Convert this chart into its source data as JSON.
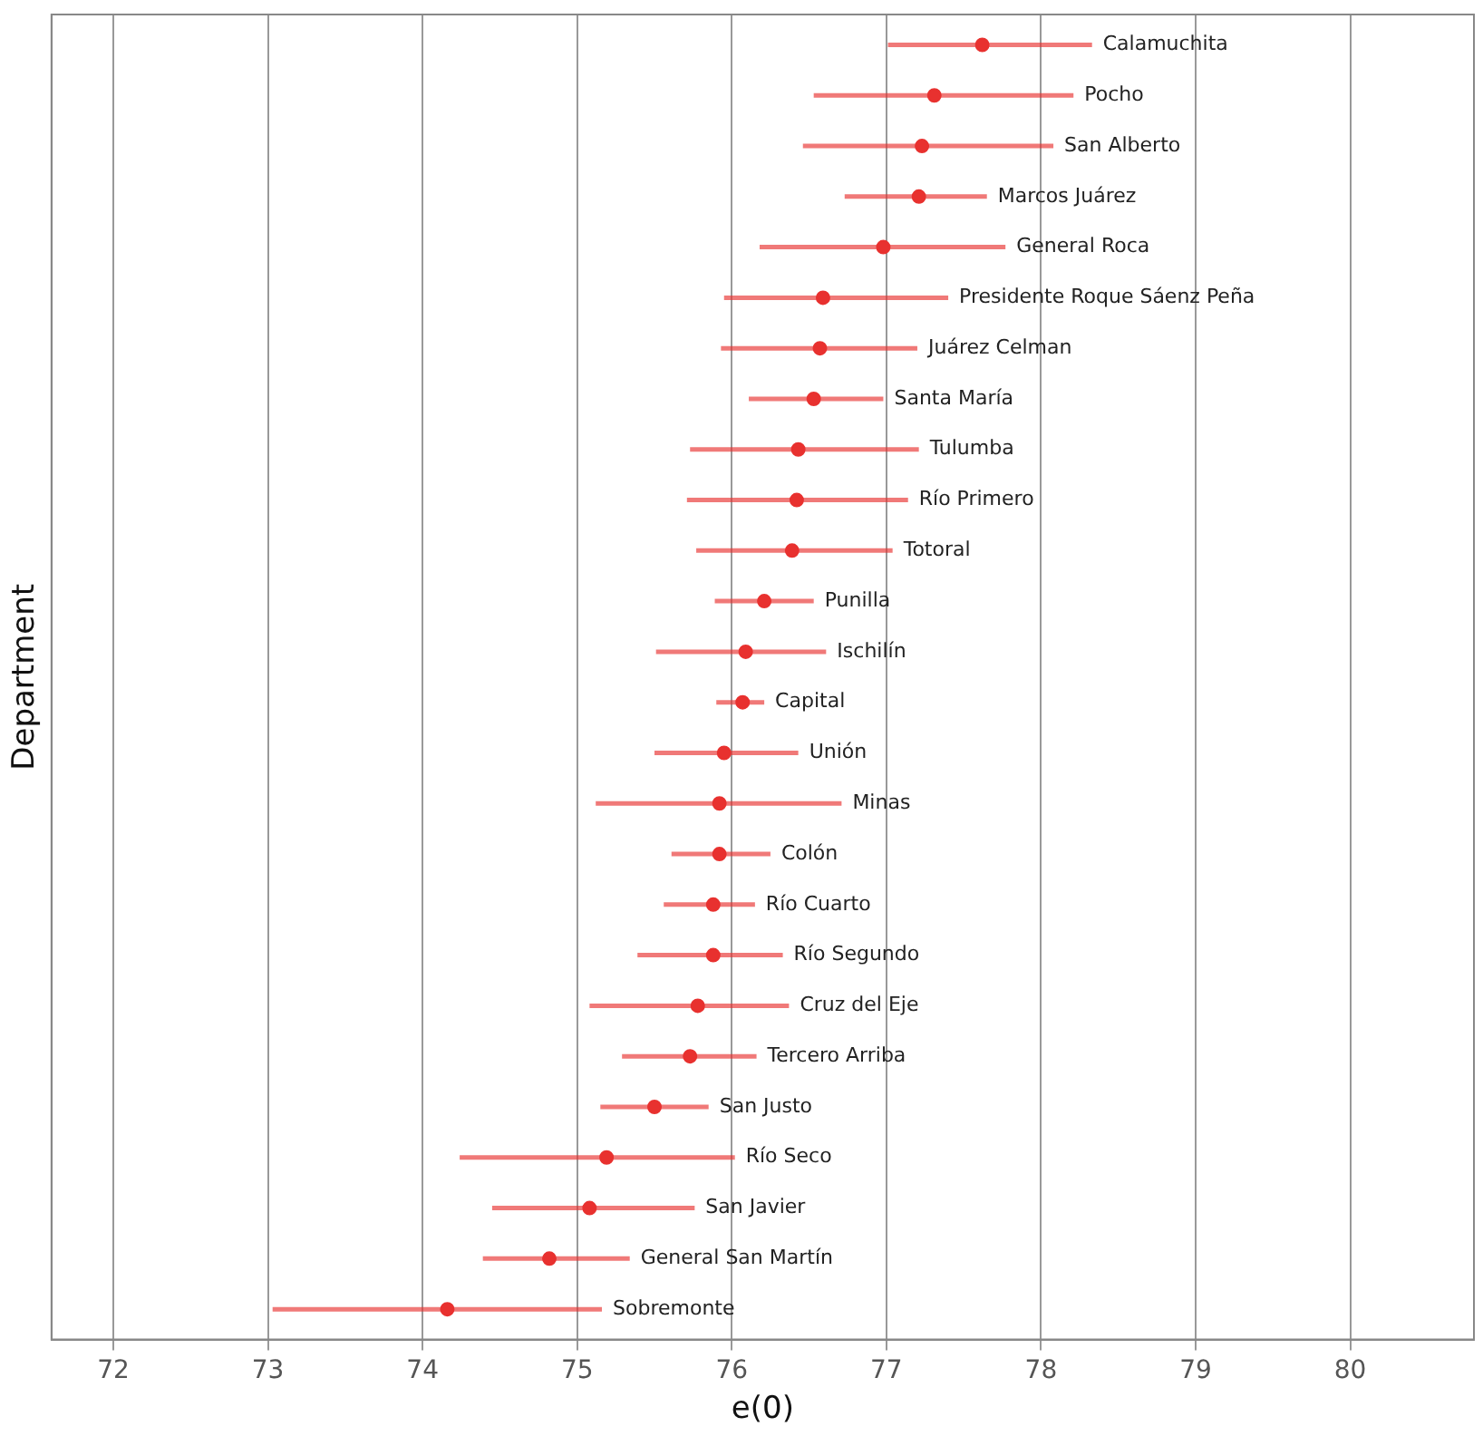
{
  "chart_data": {
    "type": "scatter",
    "orientation": "horizontal",
    "xlabel": "e(0)",
    "ylabel": "Department",
    "xlim": [
      71.6,
      80.8
    ],
    "xticks": [
      72,
      73,
      74,
      75,
      76,
      77,
      78,
      79,
      80
    ],
    "grid": "x",
    "tick_labels": "x",
    "legend": false,
    "marker": "circle",
    "color": "#e8312f",
    "categories": [
      "Calamuchita",
      "Pocho",
      "San Alberto",
      "Marcos Juárez",
      "General Roca",
      "Presidente Roque Sáenz Peña",
      "Juárez Celman",
      "Santa María",
      "Tulumba",
      "Río Primero",
      "Totoral",
      "Punilla",
      "Ischilín",
      "Capital",
      "Unión",
      "Minas",
      "Colón",
      "Río Cuarto",
      "Río Segundo",
      "Cruz del Eje",
      "Tercero Arriba",
      "San Justo",
      "Río Seco",
      "San Javier",
      "General San Martín",
      "Sobremonte"
    ],
    "values": [
      77.62,
      77.31,
      77.23,
      77.21,
      76.98,
      76.59,
      76.57,
      76.53,
      76.43,
      76.42,
      76.39,
      76.21,
      76.09,
      76.07,
      75.95,
      75.92,
      75.92,
      75.88,
      75.88,
      75.78,
      75.73,
      75.5,
      75.19,
      75.08,
      74.82,
      74.16
    ],
    "errors": [
      [
        77.01,
        78.33
      ],
      [
        76.53,
        78.21
      ],
      [
        76.46,
        78.08
      ],
      [
        76.73,
        77.65
      ],
      [
        76.18,
        77.77
      ],
      [
        75.95,
        77.4
      ],
      [
        75.93,
        77.2
      ],
      [
        76.11,
        76.98
      ],
      [
        75.73,
        77.21
      ],
      [
        75.71,
        77.14
      ],
      [
        75.77,
        77.04
      ],
      [
        75.89,
        76.53
      ],
      [
        75.51,
        76.61
      ],
      [
        75.9,
        76.21
      ],
      [
        75.5,
        76.43
      ],
      [
        75.12,
        76.71
      ],
      [
        75.61,
        76.25
      ],
      [
        75.56,
        76.15
      ],
      [
        75.39,
        76.33
      ],
      [
        75.08,
        76.37
      ],
      [
        75.29,
        76.16
      ],
      [
        75.15,
        75.85
      ],
      [
        74.24,
        76.02
      ],
      [
        74.45,
        75.76
      ],
      [
        74.39,
        75.34
      ],
      [
        73.03,
        75.16
      ]
    ]
  }
}
